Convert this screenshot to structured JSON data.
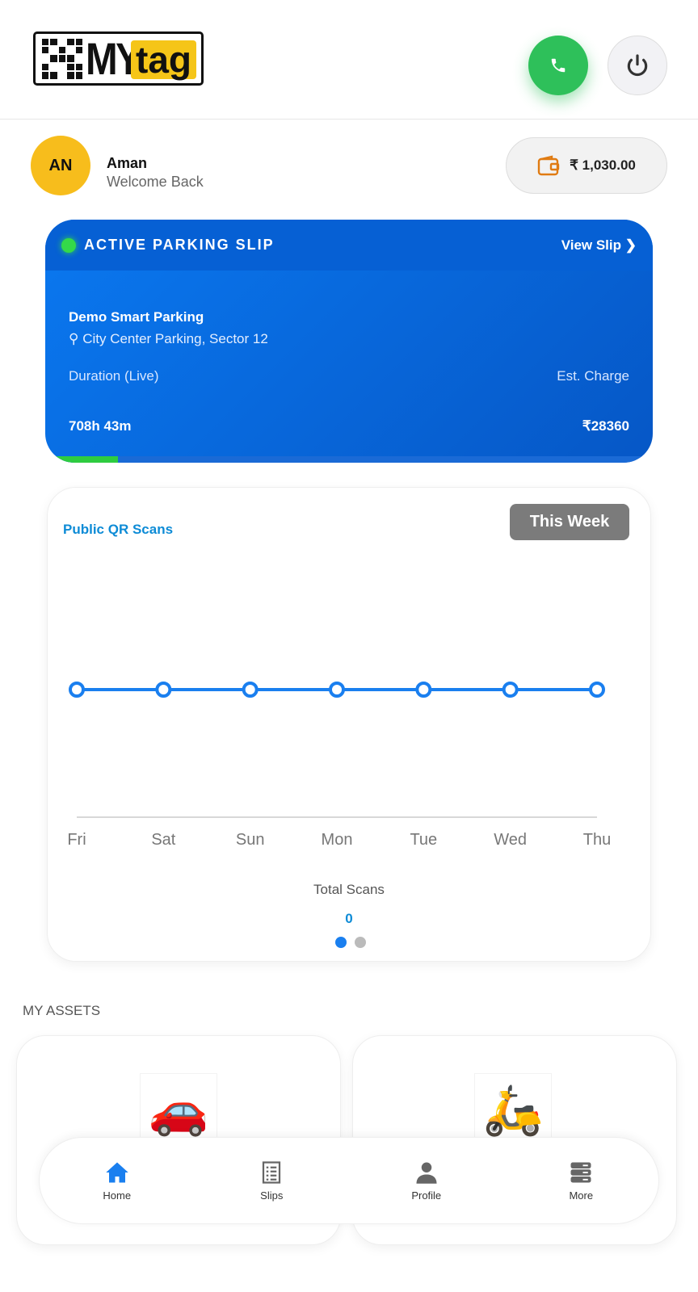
{
  "header": {
    "logo_text": "MYtag",
    "call_icon": "phone-icon",
    "power_icon": "power-icon"
  },
  "user": {
    "initials": "AN",
    "name": "Aman",
    "greeting": "Welcome Back"
  },
  "wallet": {
    "icon": "wallet-icon",
    "balance": "₹ 1,030.00"
  },
  "parking_slip": {
    "title": "ACTIVE PARKING SLIP",
    "view_label": "View Slip",
    "name": "Demo Smart Parking",
    "location": "City Center Parking, Sector 12",
    "duration_label": "Duration (Live)",
    "charge_label": "Est. Charge",
    "duration": "708h 43m",
    "charge": "₹28360",
    "progress_percent": 12,
    "accent": "#0a78f0",
    "status_color": "#34d94a"
  },
  "scans": {
    "title": "Public QR Scans",
    "period": "This Week",
    "total_label": "Total Scans",
    "total": "0",
    "page_count": 2,
    "active_page": 1
  },
  "chart_data": {
    "type": "line",
    "categories": [
      "Fri",
      "Sat",
      "Sun",
      "Mon",
      "Tue",
      "Wed",
      "Thu"
    ],
    "values": [
      0,
      0,
      0,
      0,
      0,
      0,
      0
    ],
    "color": "#1a7fef",
    "grid": false
  },
  "assets": {
    "heading": "MY ASSETS",
    "items": [
      {
        "type": "car",
        "icon": "car-icon"
      },
      {
        "type": "scooter",
        "icon": "scooter-icon"
      }
    ]
  },
  "nav": {
    "items": [
      {
        "label": "Home",
        "icon": "home-icon",
        "active": true
      },
      {
        "label": "Slips",
        "icon": "list-icon"
      },
      {
        "label": "Profile",
        "icon": "user-icon"
      },
      {
        "label": "More",
        "icon": "server-icon"
      }
    ]
  }
}
